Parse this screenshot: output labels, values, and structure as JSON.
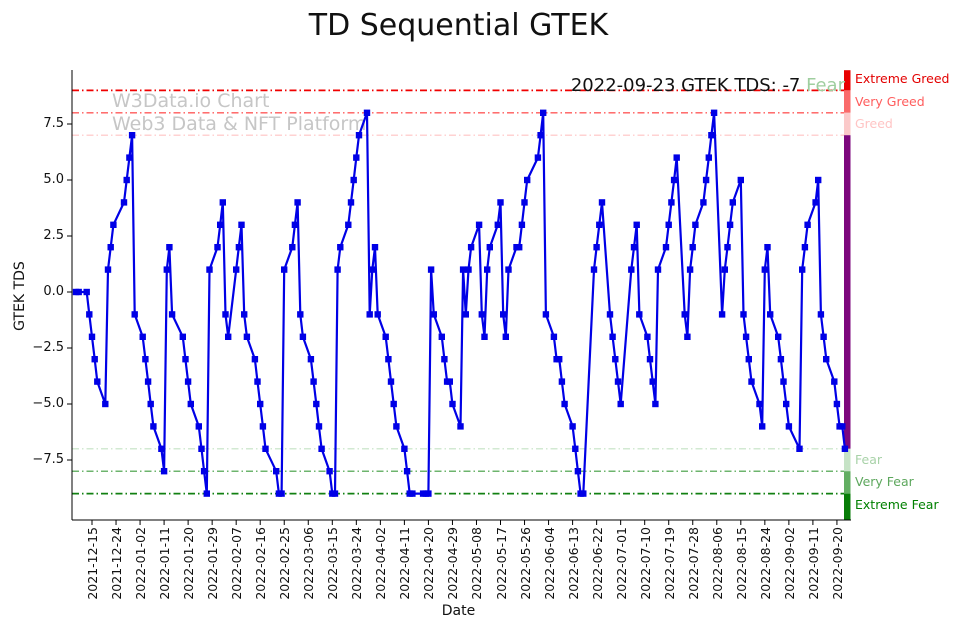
{
  "title": "TD Sequential GTEK",
  "annotation": {
    "text": "2022-09-23 GTEK TDS: -7",
    "status": " Fear",
    "status_color": "#9fce9f"
  },
  "watermark": {
    "line1": "W3Data.io Chart",
    "line2": "Web3 Data & NFT Platform"
  },
  "chart_data": {
    "type": "line",
    "title": "TD Sequential GTEK",
    "xlabel": "Date",
    "ylabel": "GTEK TDS",
    "ylim": [
      -10.2,
      9.9
    ],
    "grid": false,
    "legend": "none",
    "x_start": "2021-12-15",
    "yticks": [
      "7.5",
      "5.0",
      "2.5",
      "0.0",
      "−2.5",
      "−5.0",
      "−7.5"
    ],
    "ytick_values": [
      7.5,
      5.0,
      2.5,
      0.0,
      -2.5,
      -5.0,
      -7.5
    ],
    "xticks": [
      "2021-12-15",
      "2021-12-24",
      "2022-01-02",
      "2022-01-11",
      "2022-01-20",
      "2022-01-29",
      "2022-02-07",
      "2022-02-16",
      "2022-02-25",
      "2022-03-06",
      "2022-03-15",
      "2022-03-24",
      "2022-04-02",
      "2022-04-11",
      "2022-04-20",
      "2022-04-29",
      "2022-05-08",
      "2022-05-17",
      "2022-05-26",
      "2022-06-04",
      "2022-06-13",
      "2022-06-22",
      "2022-07-01",
      "2022-07-10",
      "2022-07-19",
      "2022-07-28",
      "2022-08-06",
      "2022-08-15",
      "2022-08-24",
      "2022-09-02",
      "2022-09-11",
      "2022-09-20"
    ],
    "zones": {
      "lines": [
        {
          "label": "Extreme Greed",
          "level": 9,
          "color": "#f00000",
          "width": 1.7
        },
        {
          "label": "Very Greed",
          "level": 8,
          "color": "#ff5a5a",
          "width": 1.4
        },
        {
          "label": "Greed",
          "level": 7,
          "color": "#ffc4c4",
          "width": 1.2
        },
        {
          "label": "Fear",
          "level": -7,
          "color": "#c4e2c4",
          "width": 1.2
        },
        {
          "label": "Very Fear",
          "level": -8,
          "color": "#6db46d",
          "width": 1.5
        },
        {
          "label": "Extreme Fear",
          "level": -9,
          "color": "#128012",
          "width": 1.8
        }
      ],
      "labels": [
        {
          "text": "Extreme Greed",
          "level": 9,
          "side": "above",
          "color": "#e30000"
        },
        {
          "text": "Very Greed",
          "level": 8,
          "side": "above",
          "color": "#ff5c5c"
        },
        {
          "text": "Greed",
          "level": 7,
          "side": "above",
          "color": "#ffc4c4"
        },
        {
          "text": "Fear",
          "level": -7,
          "side": "below",
          "color": "#a8d2a8"
        },
        {
          "text": "Very Fear",
          "level": -8,
          "side": "below",
          "color": "#5da75d"
        },
        {
          "text": "Extreme Fear",
          "level": -9,
          "side": "below",
          "color": "#008000"
        }
      ]
    },
    "colorbar": {
      "segments": [
        {
          "from": 9.9,
          "to": 9,
          "color": "#e80000"
        },
        {
          "from": 9,
          "to": 8,
          "color": "#fa6a6a"
        },
        {
          "from": 8,
          "to": 7,
          "color": "#fbc9c9"
        },
        {
          "from": 7,
          "to": -7,
          "color": "#7d077d"
        },
        {
          "from": -7,
          "to": -8,
          "color": "#c6e3c6"
        },
        {
          "from": -8,
          "to": -9,
          "color": "#62ae62"
        },
        {
          "from": -9,
          "to": -10.2,
          "color": "#077d07"
        }
      ]
    },
    "series": {
      "name": "GTEK TDS",
      "color": "#0000e6",
      "marker": "square",
      "dates_by_month": {
        "2021-12": [
          9,
          10,
          13,
          14,
          15,
          16,
          17,
          20,
          21,
          22,
          23,
          27,
          28,
          29,
          30,
          31
        ],
        "2022-01": [
          3,
          4,
          5,
          6,
          7,
          10,
          11,
          12,
          13,
          14,
          18,
          19,
          20,
          21,
          24,
          25,
          26,
          27,
          28,
          31
        ],
        "2022-02": [
          1,
          2,
          3,
          4,
          7,
          8,
          9,
          10,
          11,
          14,
          15,
          16,
          17,
          18,
          22,
          23,
          24,
          25,
          28
        ],
        "2022-03": [
          1,
          2,
          3,
          4,
          7,
          8,
          9,
          10,
          11,
          14,
          15,
          16,
          17,
          18,
          21,
          22,
          23,
          24,
          25,
          28,
          29,
          30,
          31
        ],
        "2022-04": [
          1,
          4,
          5,
          6,
          7,
          8,
          11,
          12,
          13,
          14,
          18,
          19,
          20,
          21,
          22,
          25,
          26,
          27,
          28,
          29
        ],
        "2022-05": [
          2,
          3,
          4,
          5,
          6,
          9,
          10,
          11,
          12,
          13,
          16,
          17,
          18,
          19,
          20,
          23,
          24,
          25,
          26,
          27,
          31
        ],
        "2022-06": [
          1,
          2,
          3,
          6,
          7,
          8,
          9,
          10,
          13,
          14,
          15,
          16,
          17,
          21,
          22,
          23,
          24,
          27,
          28,
          29,
          30
        ],
        "2022-07": [
          1,
          5,
          6,
          7,
          8,
          11,
          12,
          13,
          14,
          15,
          18,
          19,
          20,
          21,
          22,
          25,
          26,
          27,
          28,
          29
        ],
        "2022-08": [
          1,
          2,
          3,
          4,
          5,
          8,
          9,
          10,
          11,
          12,
          15,
          16,
          17,
          18,
          19,
          22,
          23,
          24,
          25,
          26,
          29,
          30,
          31
        ],
        "2022-09": [
          1,
          2,
          6,
          7,
          8,
          9,
          12,
          13,
          14,
          15,
          16,
          19,
          20,
          21,
          22,
          23
        ]
      },
      "values": [
        0,
        0,
        0,
        -1,
        -2,
        -3,
        -4,
        -5,
        1,
        2,
        3,
        4,
        5,
        6,
        7,
        -1,
        -2,
        -3,
        -4,
        -5,
        -6,
        -7,
        -8,
        1,
        2,
        -1,
        -2,
        -3,
        -4,
        -5,
        -6,
        -7,
        -8,
        -9,
        1,
        2,
        3,
        4,
        -1,
        -2,
        1,
        2,
        3,
        -1,
        -2,
        -3,
        -4,
        -5,
        -6,
        -7,
        -8,
        -9,
        -9,
        1,
        2,
        3,
        4,
        -1,
        -2,
        -3,
        -4,
        -5,
        -6,
        -7,
        -8,
        -9,
        -9,
        1,
        2,
        3,
        4,
        5,
        6,
        7,
        8,
        -1,
        1,
        2,
        -1,
        -2,
        -3,
        -4,
        -5,
        -6,
        -7,
        -8,
        -9,
        -9,
        -9,
        -9,
        -9,
        1,
        -1,
        -2,
        -3,
        -4,
        -4,
        -5,
        -6,
        1,
        -1,
        1,
        2,
        3,
        -1,
        -2,
        1,
        2,
        3,
        4,
        -1,
        -2,
        1,
        2,
        2,
        3,
        4,
        5,
        6,
        7,
        8,
        -1,
        -2,
        -3,
        -3,
        -4,
        -5,
        -6,
        -7,
        -8,
        -9,
        -9,
        1,
        2,
        3,
        4,
        -1,
        -2,
        -3,
        -4,
        -5,
        1,
        2,
        3,
        -1,
        -2,
        -3,
        -4,
        -5,
        1,
        2,
        3,
        4,
        5,
        6,
        -1,
        -2,
        1,
        2,
        3,
        4,
        5,
        6,
        7,
        8,
        -1,
        1,
        2,
        3,
        4,
        5,
        -1,
        -2,
        -3,
        -4,
        -5,
        -6,
        1,
        2,
        -1,
        -2,
        -3,
        -4,
        -5,
        -6,
        -7,
        1,
        2,
        3,
        4,
        5,
        -1,
        -2,
        -3,
        -4,
        -5,
        -6,
        -6,
        -7
      ]
    }
  }
}
